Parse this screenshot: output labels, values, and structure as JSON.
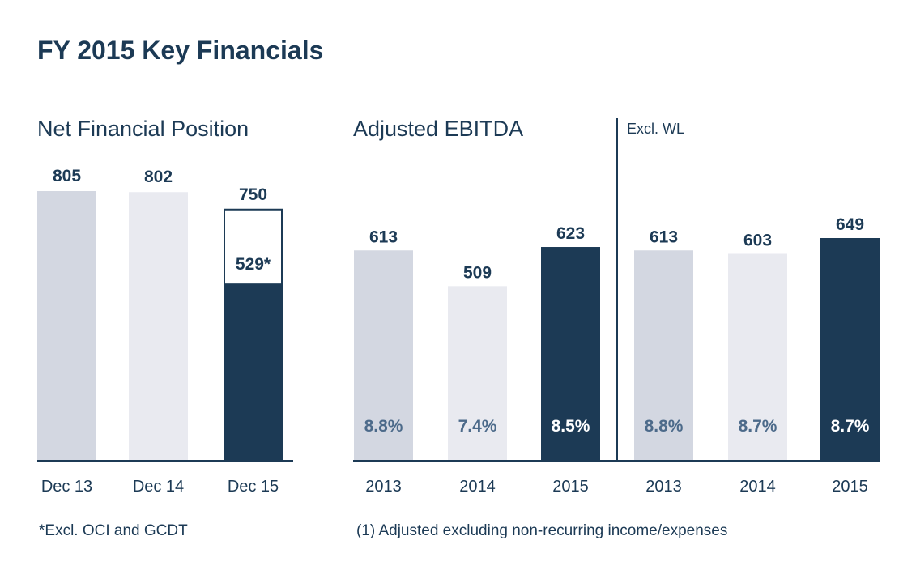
{
  "title": "FY 2015 Key Financials",
  "colors": {
    "dark": "#1c3a55",
    "light1": "#d3d7e1",
    "light2": "#e9eaf0",
    "pct_light": "#4c6a8a",
    "pct_dark": "#ffffff"
  },
  "chart_data": [
    {
      "type": "bar",
      "title": "Net Financial Position",
      "categories": [
        "Dec 13",
        "Dec 14",
        "Dec 15"
      ],
      "values": [
        805,
        802,
        750
      ],
      "value_labels": [
        "805",
        "802",
        "750"
      ],
      "inner_bar": {
        "category": "Dec 15",
        "value": 529,
        "label": "529*"
      },
      "ylim": [
        0,
        805
      ],
      "footnote": "*Excl. OCI and GCDT"
    },
    {
      "type": "bar",
      "title": "Adjusted EBITDA",
      "categories": [
        "2013",
        "2014",
        "2015"
      ],
      "values": [
        613,
        509,
        623
      ],
      "value_labels": [
        "613",
        "509",
        "623"
      ],
      "margins": [
        "8.8%",
        "7.4%",
        "8.5%"
      ],
      "ylim": [
        0,
        649
      ],
      "footnote": "(1) Adjusted excluding non-recurring income/expenses"
    },
    {
      "type": "bar",
      "title": "Excl. WL",
      "categories": [
        "2013",
        "2014",
        "2015"
      ],
      "values": [
        613,
        603,
        649
      ],
      "value_labels": [
        "613",
        "603",
        "649"
      ],
      "margins": [
        "8.8%",
        "8.7%",
        "8.7%"
      ],
      "ylim": [
        0,
        649
      ]
    }
  ]
}
